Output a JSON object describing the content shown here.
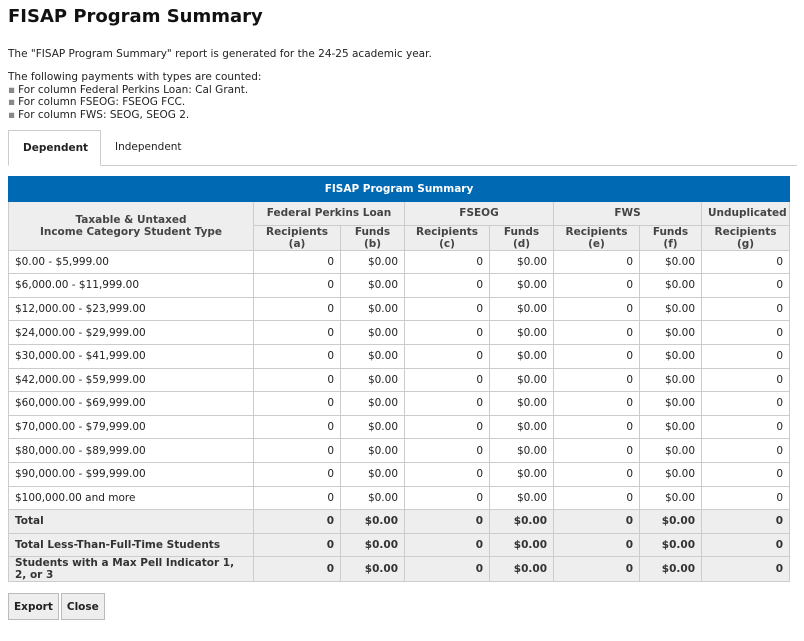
{
  "header": {
    "title": "FISAP Program Summary"
  },
  "intro": "The \"FISAP Program Summary\" report is generated for the 24-25 academic year.",
  "counted": {
    "heading": "The following payments with types are counted:",
    "items": [
      "For column Federal Perkins Loan: Cal Grant.",
      "For column FSEOG: FSEOG FCC.",
      "For column FWS: SEOG, SEOG 2."
    ]
  },
  "tabs": [
    "Dependent",
    "Independent"
  ],
  "table": {
    "caption": "FISAP Program Summary",
    "row_header": [
      "Taxable & Untaxed",
      "Income Category Student Type"
    ],
    "groups": [
      "Federal Perkins Loan",
      "FSEOG",
      "FWS",
      "Unduplicated"
    ],
    "columns": [
      "Recipients (a)",
      "Funds (b)",
      "Recipients (c)",
      "Funds (d)",
      "Recipients (e)",
      "Funds (f)",
      "Recipients (g)"
    ],
    "rows": [
      [
        "$0.00 - $5,999.00",
        0,
        "$0.00",
        0,
        "$0.00",
        0,
        "$0.00",
        0
      ],
      [
        "$6,000.00 - $11,999.00",
        0,
        "$0.00",
        0,
        "$0.00",
        0,
        "$0.00",
        0
      ],
      [
        "$12,000.00 - $23,999.00",
        0,
        "$0.00",
        0,
        "$0.00",
        0,
        "$0.00",
        0
      ],
      [
        "$24,000.00 - $29,999.00",
        0,
        "$0.00",
        0,
        "$0.00",
        0,
        "$0.00",
        0
      ],
      [
        "$30,000.00 - $41,999.00",
        0,
        "$0.00",
        0,
        "$0.00",
        0,
        "$0.00",
        0
      ],
      [
        "$42,000.00 - $59,999.00",
        0,
        "$0.00",
        0,
        "$0.00",
        0,
        "$0.00",
        0
      ],
      [
        "$60,000.00 - $69,999.00",
        0,
        "$0.00",
        0,
        "$0.00",
        0,
        "$0.00",
        0
      ],
      [
        "$70,000.00 - $79,999.00",
        0,
        "$0.00",
        0,
        "$0.00",
        0,
        "$0.00",
        0
      ],
      [
        "$80,000.00 - $89,999.00",
        0,
        "$0.00",
        0,
        "$0.00",
        0,
        "$0.00",
        0
      ],
      [
        "$90,000.00 - $99,999.00",
        0,
        "$0.00",
        0,
        "$0.00",
        0,
        "$0.00",
        0
      ],
      [
        "$100,000.00 and more",
        0,
        "$0.00",
        0,
        "$0.00",
        0,
        "$0.00",
        0
      ]
    ],
    "totals": [
      [
        "Total",
        0,
        "$0.00",
        0,
        "$0.00",
        0,
        "$0.00",
        0
      ],
      [
        "Total Less-Than-Full-Time Students",
        0,
        "$0.00",
        0,
        "$0.00",
        0,
        "$0.00",
        0
      ],
      [
        "Students with a Max Pell Indicator 1, 2, or 3",
        0,
        "$0.00",
        0,
        "$0.00",
        0,
        "$0.00",
        0
      ]
    ]
  },
  "buttons": [
    "Export",
    "Close"
  ]
}
